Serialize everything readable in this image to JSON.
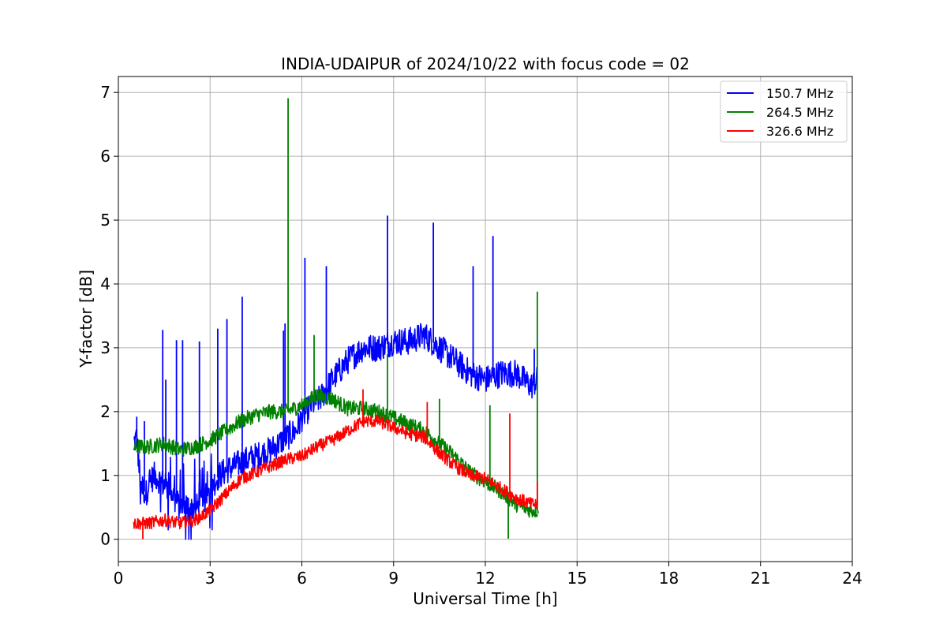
{
  "chart_data": {
    "type": "line",
    "title": "INDIA-UDAIPUR of 2024/10/22 with focus code = 02",
    "xlabel": "Universal Time [h]",
    "ylabel": "Y-factor [dB]",
    "xlim": [
      0,
      24
    ],
    "ylim": [
      -0.35,
      7.25
    ],
    "xticks": [
      0,
      3,
      6,
      9,
      12,
      15,
      18,
      21,
      24
    ],
    "xtick_labels": [
      "0",
      "3",
      "6",
      "9",
      "12",
      "15",
      "18",
      "21",
      "24"
    ],
    "yticks": [
      0,
      1,
      2,
      3,
      4,
      5,
      6,
      7
    ],
    "ytick_labels": [
      "0",
      "1",
      "2",
      "3",
      "4",
      "5",
      "6",
      "7"
    ],
    "grid": true,
    "legend_position": "top-right",
    "series": [
      {
        "name": "150.7 MHz",
        "color": "#0000ff",
        "x": [
          0.5,
          0.6,
          0.7,
          0.8,
          0.9,
          1.0,
          1.2,
          1.4,
          1.6,
          1.8,
          2.0,
          2.2,
          2.4,
          2.6,
          2.8,
          3.0,
          3.3,
          3.6,
          4.0,
          4.5,
          5.0,
          5.5,
          5.8,
          6.0,
          6.3,
          6.6,
          7.0,
          7.5,
          8.0,
          8.5,
          9.0,
          9.5,
          10.0,
          10.5,
          11.0,
          11.5,
          12.0,
          12.5,
          13.0,
          13.5,
          13.7
        ],
        "values": [
          1.5,
          1.6,
          1.0,
          0.8,
          0.7,
          0.9,
          1.0,
          0.9,
          0.8,
          0.7,
          0.5,
          0.5,
          0.5,
          0.5,
          0.6,
          0.8,
          1.0,
          1.1,
          1.2,
          1.3,
          1.4,
          1.6,
          1.7,
          1.9,
          2.1,
          2.2,
          2.5,
          2.8,
          3.0,
          3.0,
          3.1,
          3.1,
          3.2,
          3.0,
          2.8,
          2.6,
          2.5,
          2.6,
          2.6,
          2.4,
          2.5
        ],
        "spikes": [
          [
            1.45,
            3.28
          ],
          [
            1.55,
            2.5
          ],
          [
            1.9,
            3.12
          ],
          [
            2.1,
            3.12
          ],
          [
            2.65,
            3.1
          ],
          [
            3.25,
            3.3
          ],
          [
            3.55,
            3.45
          ],
          [
            4.05,
            3.8
          ],
          [
            5.4,
            3.27
          ],
          [
            5.45,
            3.38
          ],
          [
            6.1,
            4.41
          ],
          [
            6.8,
            4.28
          ],
          [
            8.8,
            5.07
          ],
          [
            10.3,
            4.96
          ],
          [
            11.6,
            4.28
          ],
          [
            12.25,
            4.75
          ],
          [
            13.6,
            2.98
          ],
          [
            0.6,
            1.92
          ],
          [
            0.85,
            1.85
          ]
        ]
      },
      {
        "name": "264.5 MHz",
        "color": "#008000",
        "x": [
          0.5,
          1.0,
          1.5,
          2.0,
          2.5,
          3.0,
          3.5,
          4.0,
          4.5,
          5.0,
          5.5,
          6.0,
          6.5,
          7.0,
          7.5,
          8.0,
          8.5,
          9.0,
          9.5,
          10.0,
          10.5,
          11.0,
          11.5,
          12.0,
          12.5,
          13.0,
          13.5,
          13.7
        ],
        "values": [
          1.45,
          1.45,
          1.5,
          1.4,
          1.45,
          1.55,
          1.7,
          1.85,
          1.95,
          2.0,
          2.0,
          2.1,
          2.25,
          2.2,
          2.05,
          2.05,
          2.0,
          1.9,
          1.8,
          1.7,
          1.5,
          1.3,
          1.05,
          0.9,
          0.75,
          0.55,
          0.45,
          0.45
        ],
        "spikes": [
          [
            5.55,
            6.91
          ],
          [
            6.4,
            3.2
          ],
          [
            8.8,
            2.9
          ],
          [
            10.5,
            2.2
          ],
          [
            12.15,
            2.1
          ],
          [
            12.75,
            0.01
          ],
          [
            13.7,
            3.88
          ],
          [
            13.72,
            0.4
          ]
        ]
      },
      {
        "name": "326.6 MHz",
        "color": "#ff0000",
        "x": [
          0.5,
          1.0,
          1.5,
          2.0,
          2.5,
          3.0,
          3.5,
          4.0,
          4.5,
          5.0,
          5.5,
          6.0,
          6.5,
          7.0,
          7.5,
          8.0,
          8.5,
          9.0,
          9.5,
          10.0,
          10.5,
          11.0,
          11.5,
          12.0,
          12.5,
          13.0,
          13.5,
          13.7
        ],
        "values": [
          0.25,
          0.25,
          0.3,
          0.25,
          0.3,
          0.45,
          0.7,
          0.95,
          1.05,
          1.15,
          1.25,
          1.3,
          1.45,
          1.55,
          1.7,
          1.85,
          1.85,
          1.75,
          1.65,
          1.6,
          1.35,
          1.15,
          1.0,
          0.95,
          0.8,
          0.65,
          0.55,
          0.55
        ],
        "spikes": [
          [
            8.0,
            2.35
          ],
          [
            10.1,
            2.15
          ],
          [
            12.8,
            1.97
          ],
          [
            13.7,
            0.9
          ],
          [
            0.8,
            0.0
          ]
        ]
      }
    ]
  }
}
